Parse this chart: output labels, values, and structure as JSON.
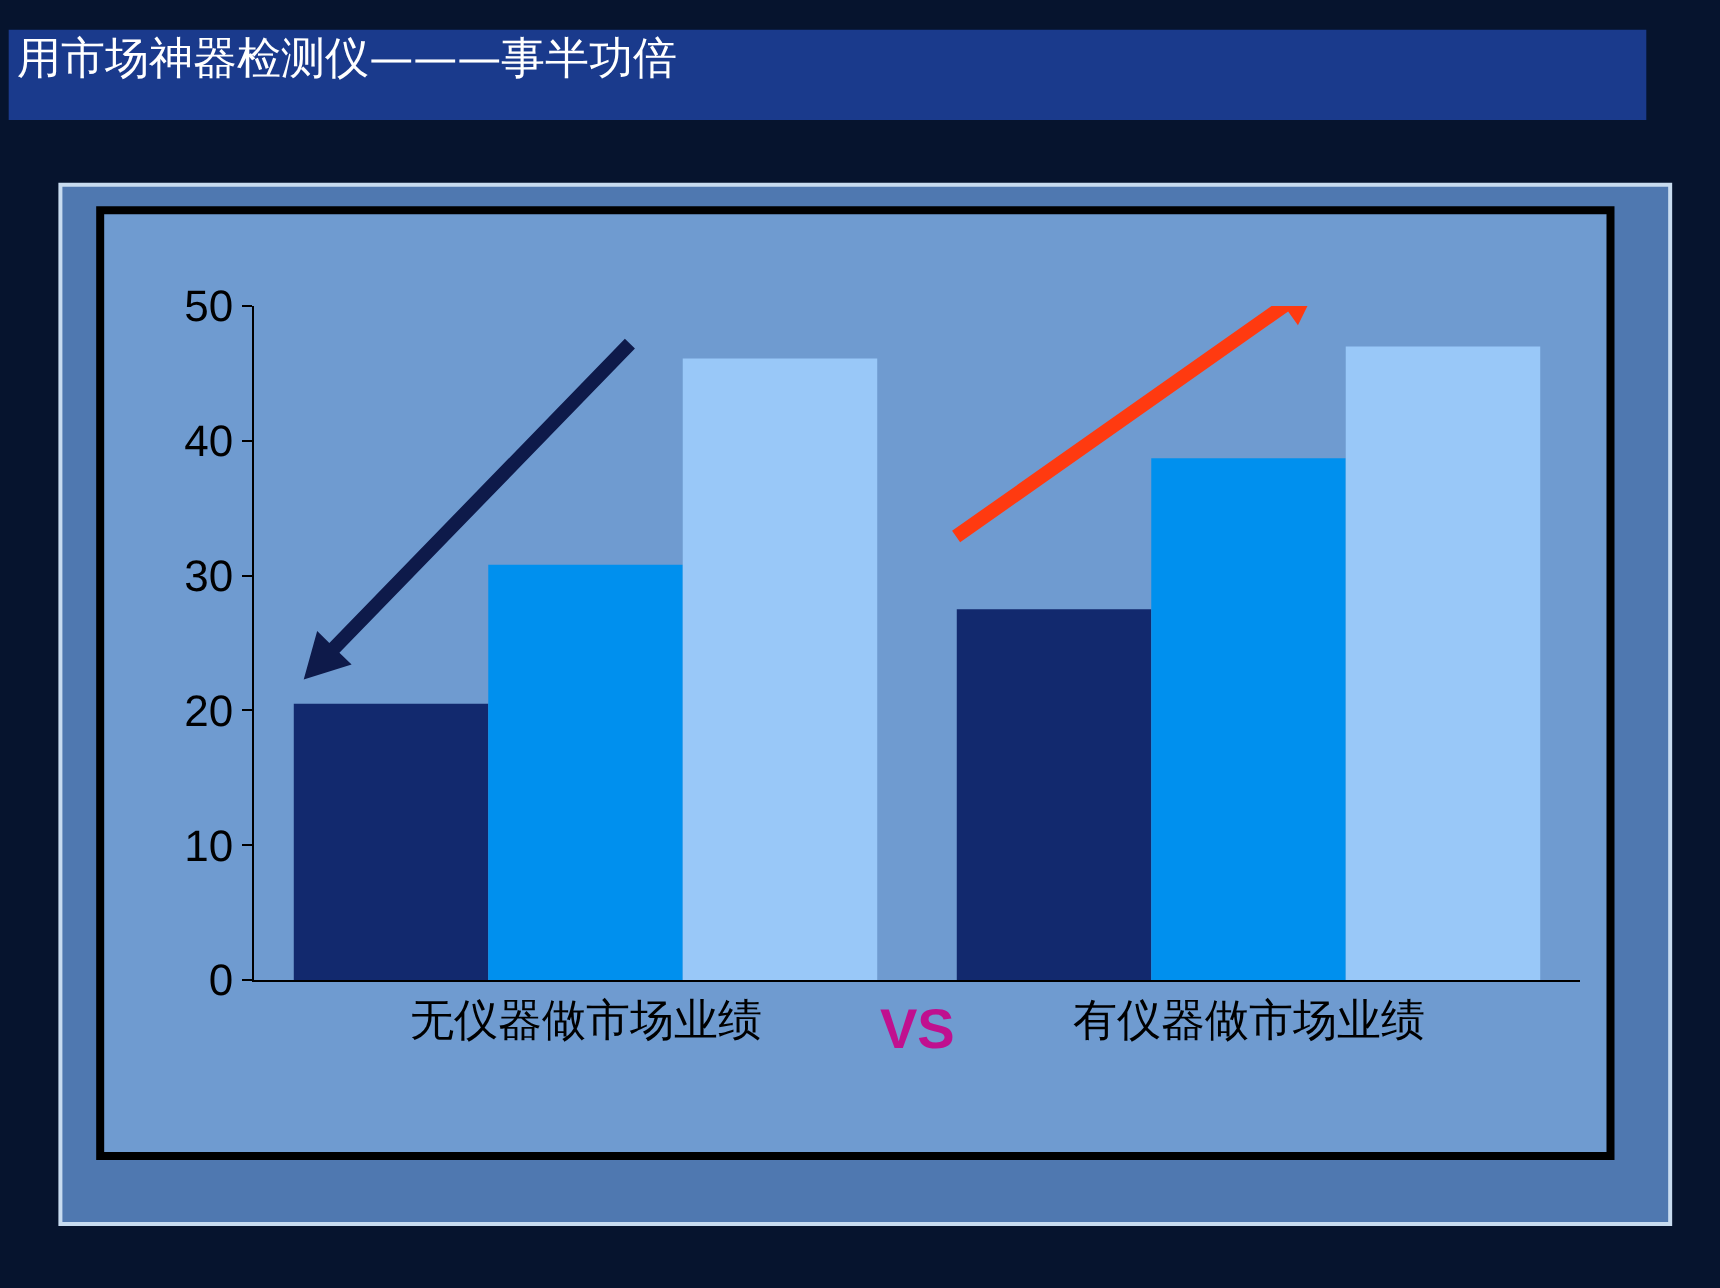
{
  "chart_data": {
    "type": "bar",
    "title": "用市场神器检测仪———事半功倍",
    "categories": [
      "无仪器做市场业绩",
      "有仪器做市场业绩"
    ],
    "series": [
      {
        "color": "#12296e",
        "values": [
          20.5,
          27.5
        ]
      },
      {
        "color": "#0090ee",
        "values": [
          30.8,
          38.7
        ]
      },
      {
        "color": "#99c8f8",
        "values": [
          46.1,
          47.0
        ]
      }
    ],
    "ylim": [
      0,
      50
    ],
    "yticks": [
      0,
      10,
      20,
      30,
      40,
      50
    ],
    "grid": false,
    "legend": false,
    "annotations": [
      "VS"
    ]
  }
}
